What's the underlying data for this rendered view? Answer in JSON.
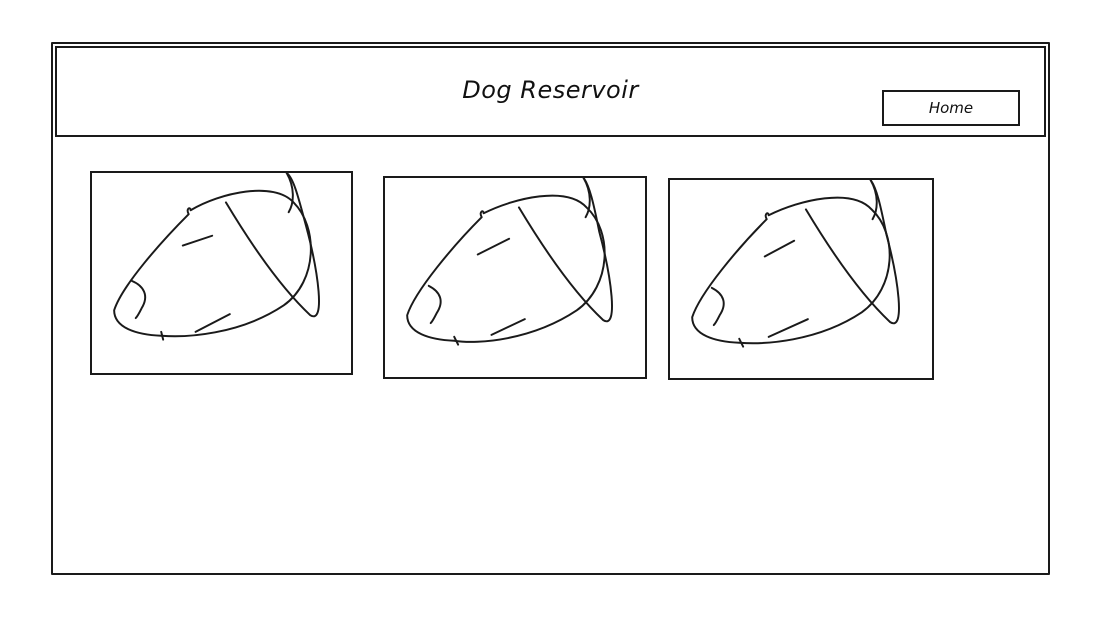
{
  "header": {
    "title": "Dog Reservoir",
    "home_label": "Home"
  },
  "gallery": {
    "items": [
      {
        "icon": "dog-head-icon"
      },
      {
        "icon": "dog-head-icon"
      },
      {
        "icon": "dog-head-icon"
      }
    ]
  },
  "colors": {
    "stroke": "#1a1a1a",
    "background": "#ffffff"
  }
}
